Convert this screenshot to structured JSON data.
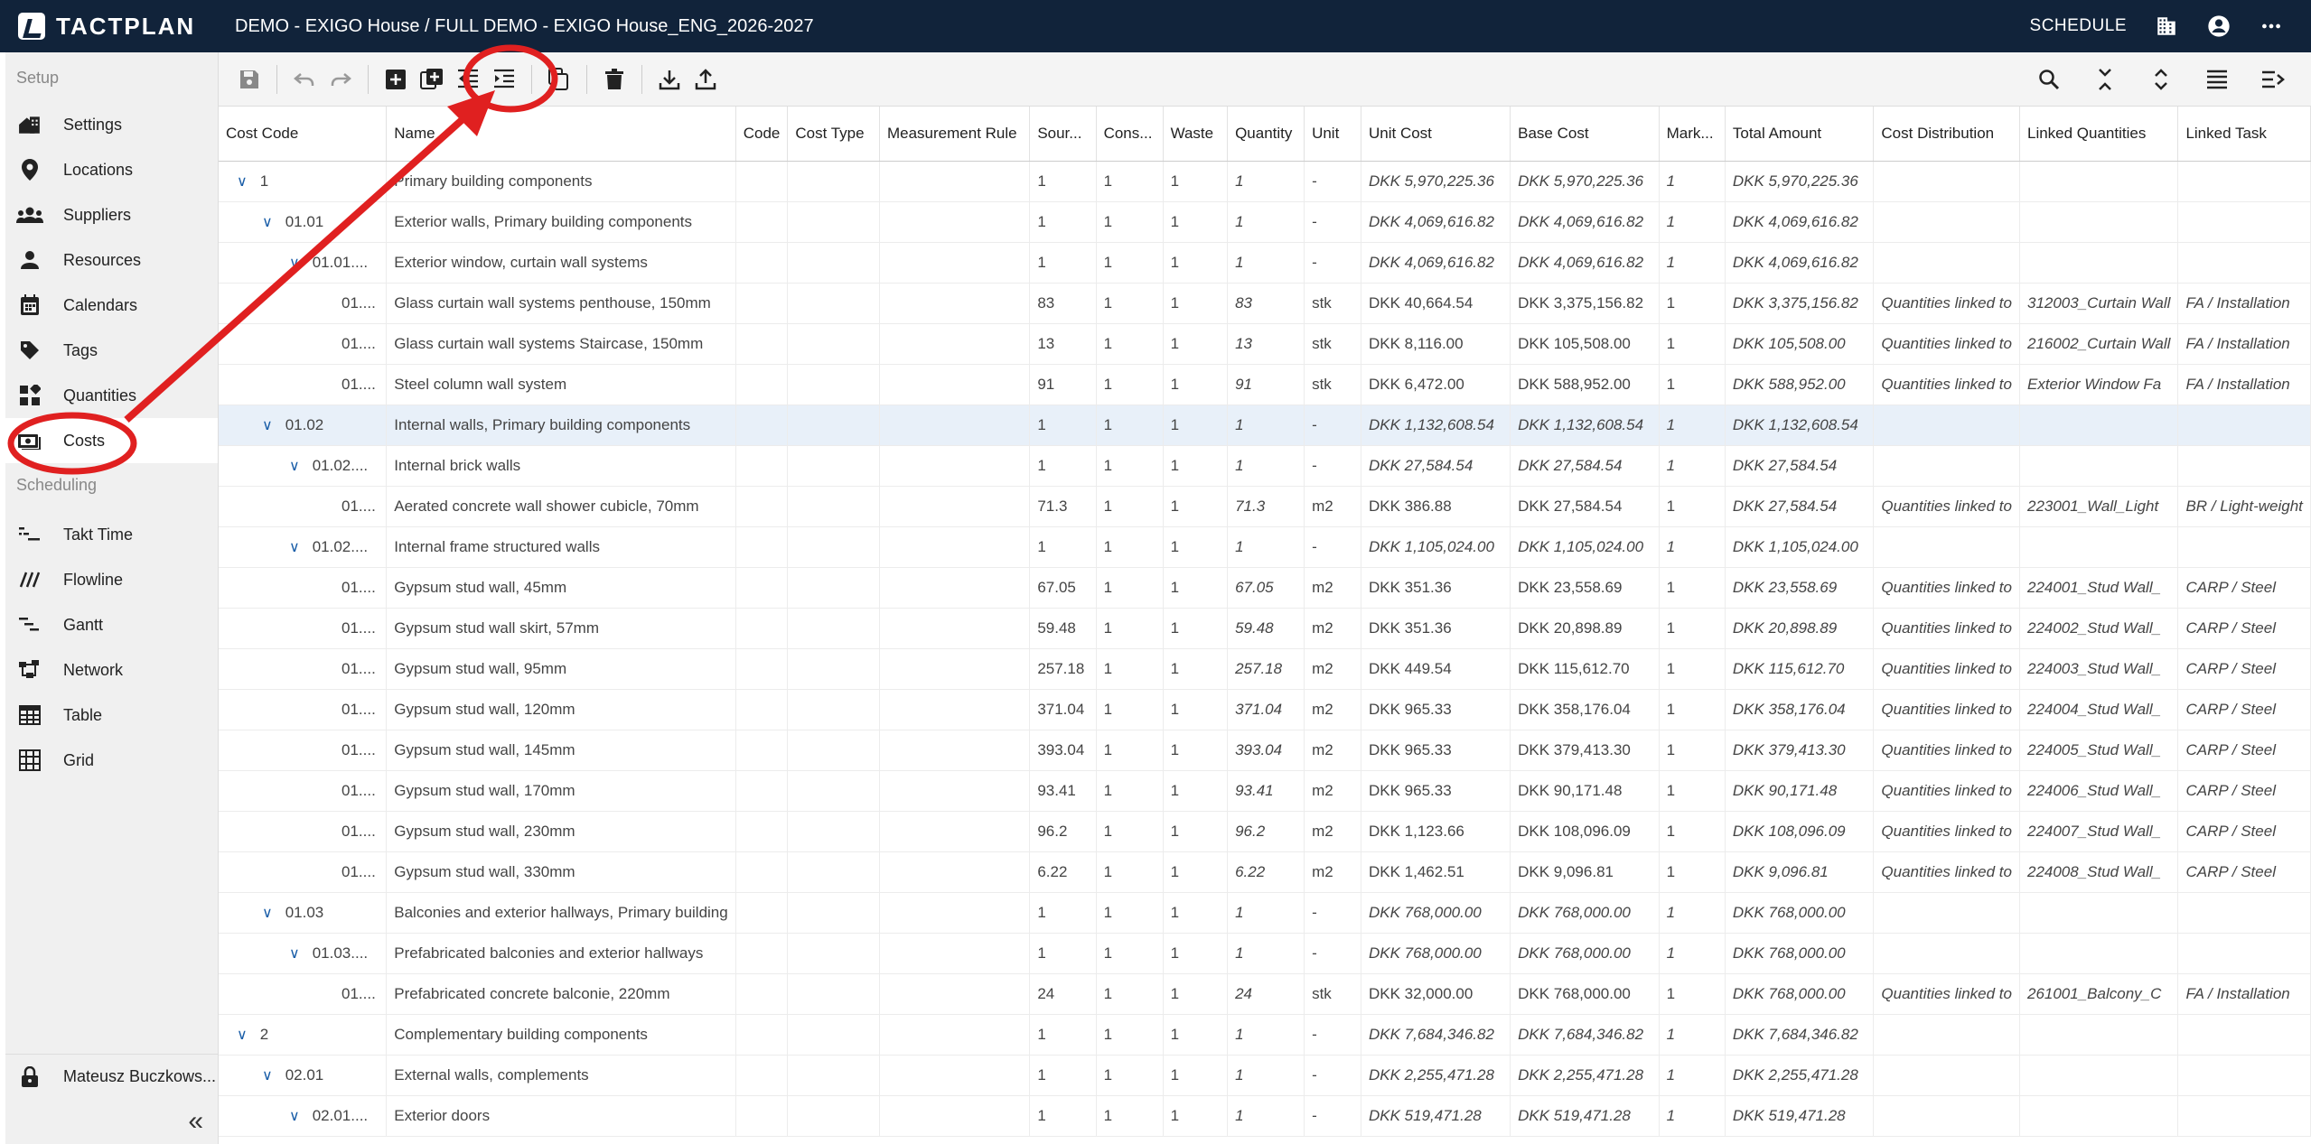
{
  "header": {
    "logo_text": "TACTPLAN",
    "title": "DEMO - EXIGO House / FULL DEMO - EXIGO House_ENG_2026-2027",
    "schedule_label": "SCHEDULE"
  },
  "sidebar": {
    "setup_label": "Setup",
    "scheduling_label": "Scheduling",
    "setup_items": [
      {
        "label": "Settings",
        "icon": "house-icon"
      },
      {
        "label": "Locations",
        "icon": "pin-icon"
      },
      {
        "label": "Suppliers",
        "icon": "group-icon"
      },
      {
        "label": "Resources",
        "icon": "person-icon"
      },
      {
        "label": "Calendars",
        "icon": "calendar-icon"
      },
      {
        "label": "Tags",
        "icon": "tag-icon"
      },
      {
        "label": "Quantities",
        "icon": "blocks-icon"
      },
      {
        "label": "Costs",
        "icon": "money-icon"
      }
    ],
    "scheduling_items": [
      {
        "label": "Takt Time",
        "icon": "takt-icon"
      },
      {
        "label": "Flowline",
        "icon": "flowline-icon"
      },
      {
        "label": "Gantt",
        "icon": "gantt-icon"
      },
      {
        "label": "Network",
        "icon": "network-icon"
      },
      {
        "label": "Table",
        "icon": "table-icon"
      },
      {
        "label": "Grid",
        "icon": "grid-icon"
      }
    ],
    "user_name": "Mateusz Buczkows...",
    "collapse_glyph": "«"
  },
  "table": {
    "columns": [
      "Cost Code",
      "Name",
      "Code",
      "Cost Type",
      "Measurement Rule",
      "Sour...",
      "Cons...",
      "Waste",
      "Quantity",
      "Unit",
      "Unit Cost",
      "Base Cost",
      "Mark...",
      "Total Amount",
      "Cost Distribution",
      "Linked Quantities",
      "Linked Task"
    ],
    "rows": [
      {
        "level": 0,
        "toggle": true,
        "code": "1",
        "name": "Primary building components",
        "source": "1",
        "cons": "1",
        "waste": "1",
        "quantity": "1",
        "unit": "-",
        "unit_cost": "DKK 5,970,225.36",
        "base_cost": "DKK 5,970,225.36",
        "markup": "1",
        "total": "DKK 5,970,225.36",
        "dist": "",
        "linked_q": "",
        "linked_t": "",
        "italic": true
      },
      {
        "level": 1,
        "toggle": true,
        "code": "01.01",
        "name": "Exterior walls, Primary building components",
        "source": "1",
        "cons": "1",
        "waste": "1",
        "quantity": "1",
        "unit": "-",
        "unit_cost": "DKK 4,069,616.82",
        "base_cost": "DKK 4,069,616.82",
        "markup": "1",
        "total": "DKK 4,069,616.82",
        "dist": "",
        "linked_q": "",
        "linked_t": "",
        "italic": true
      },
      {
        "level": 2,
        "toggle": true,
        "code": "01.01....",
        "name": "Exterior window, curtain wall systems",
        "source": "1",
        "cons": "1",
        "waste": "1",
        "quantity": "1",
        "unit": "-",
        "unit_cost": "DKK 4,069,616.82",
        "base_cost": "DKK 4,069,616.82",
        "markup": "1",
        "total": "DKK 4,069,616.82",
        "dist": "",
        "linked_q": "",
        "linked_t": "",
        "italic": true
      },
      {
        "level": 3,
        "toggle": false,
        "code": "01....",
        "name": "Glass curtain wall systems penthouse, 150mm",
        "source": "83",
        "cons": "1",
        "waste": "1",
        "quantity": "83",
        "unit": "stk",
        "unit_cost": "DKK 40,664.54",
        "base_cost": "DKK 3,375,156.82",
        "markup": "1",
        "total": "DKK 3,375,156.82",
        "dist": "Quantities linked to",
        "linked_q": "312003_Curtain Wall",
        "linked_t": "FA / Installation",
        "italic": false
      },
      {
        "level": 3,
        "toggle": false,
        "code": "01....",
        "name": "Glass curtain wall systems Staircase, 150mm",
        "source": "13",
        "cons": "1",
        "waste": "1",
        "quantity": "13",
        "unit": "stk",
        "unit_cost": "DKK 8,116.00",
        "base_cost": "DKK 105,508.00",
        "markup": "1",
        "total": "DKK 105,508.00",
        "dist": "Quantities linked to",
        "linked_q": "216002_Curtain Wall",
        "linked_t": "FA / Installation",
        "italic": false
      },
      {
        "level": 3,
        "toggle": false,
        "code": "01....",
        "name": "Steel column wall system",
        "source": "91",
        "cons": "1",
        "waste": "1",
        "quantity": "91",
        "unit": "stk",
        "unit_cost": "DKK 6,472.00",
        "base_cost": "DKK 588,952.00",
        "markup": "1",
        "total": "DKK 588,952.00",
        "dist": "Quantities linked to",
        "linked_q": "Exterior Window Fa",
        "linked_t": "FA / Installation",
        "italic": false
      },
      {
        "level": 1,
        "toggle": true,
        "code": "01.02",
        "name": "Internal walls, Primary building components",
        "source": "1",
        "cons": "1",
        "waste": "1",
        "quantity": "1",
        "unit": "-",
        "unit_cost": "DKK 1,132,608.54",
        "base_cost": "DKK 1,132,608.54",
        "markup": "1",
        "total": "DKK 1,132,608.54",
        "dist": "",
        "linked_q": "",
        "linked_t": "",
        "italic": true,
        "selected": true
      },
      {
        "level": 2,
        "toggle": true,
        "code": "01.02....",
        "name": "Internal brick walls",
        "source": "1",
        "cons": "1",
        "waste": "1",
        "quantity": "1",
        "unit": "-",
        "unit_cost": "DKK 27,584.54",
        "base_cost": "DKK 27,584.54",
        "markup": "1",
        "total": "DKK 27,584.54",
        "dist": "",
        "linked_q": "",
        "linked_t": "",
        "italic": true
      },
      {
        "level": 3,
        "toggle": false,
        "code": "01....",
        "name": "Aerated concrete wall shower cubicle, 70mm",
        "source": "71.3",
        "cons": "1",
        "waste": "1",
        "quantity": "71.3",
        "unit": "m2",
        "unit_cost": "DKK 386.88",
        "base_cost": "DKK 27,584.54",
        "markup": "1",
        "total": "DKK 27,584.54",
        "dist": "Quantities linked to",
        "linked_q": "223001_Wall_Light",
        "linked_t": "BR / Light-weight",
        "italic": false
      },
      {
        "level": 2,
        "toggle": true,
        "code": "01.02....",
        "name": "Internal frame structured walls",
        "source": "1",
        "cons": "1",
        "waste": "1",
        "quantity": "1",
        "unit": "-",
        "unit_cost": "DKK 1,105,024.00",
        "base_cost": "DKK 1,105,024.00",
        "markup": "1",
        "total": "DKK 1,105,024.00",
        "dist": "",
        "linked_q": "",
        "linked_t": "",
        "italic": true
      },
      {
        "level": 3,
        "toggle": false,
        "code": "01....",
        "name": "Gypsum stud wall, 45mm",
        "source": "67.05",
        "cons": "1",
        "waste": "1",
        "quantity": "67.05",
        "unit": "m2",
        "unit_cost": "DKK 351.36",
        "base_cost": "DKK 23,558.69",
        "markup": "1",
        "total": "DKK 23,558.69",
        "dist": "Quantities linked to",
        "linked_q": "224001_Stud Wall_",
        "linked_t": "CARP / Steel",
        "italic": false
      },
      {
        "level": 3,
        "toggle": false,
        "code": "01....",
        "name": "Gypsum stud wall skirt, 57mm",
        "source": "59.48",
        "cons": "1",
        "waste": "1",
        "quantity": "59.48",
        "unit": "m2",
        "unit_cost": "DKK 351.36",
        "base_cost": "DKK 20,898.89",
        "markup": "1",
        "total": "DKK 20,898.89",
        "dist": "Quantities linked to",
        "linked_q": "224002_Stud Wall_",
        "linked_t": "CARP / Steel",
        "italic": false
      },
      {
        "level": 3,
        "toggle": false,
        "code": "01....",
        "name": "Gypsum stud wall, 95mm",
        "source": "257.18",
        "cons": "1",
        "waste": "1",
        "quantity": "257.18",
        "unit": "m2",
        "unit_cost": "DKK 449.54",
        "base_cost": "DKK 115,612.70",
        "markup": "1",
        "total": "DKK 115,612.70",
        "dist": "Quantities linked to",
        "linked_q": "224003_Stud Wall_",
        "linked_t": "CARP / Steel",
        "italic": false
      },
      {
        "level": 3,
        "toggle": false,
        "code": "01....",
        "name": "Gypsum stud wall, 120mm",
        "source": "371.04",
        "cons": "1",
        "waste": "1",
        "quantity": "371.04",
        "unit": "m2",
        "unit_cost": "DKK 965.33",
        "base_cost": "DKK 358,176.04",
        "markup": "1",
        "total": "DKK 358,176.04",
        "dist": "Quantities linked to",
        "linked_q": "224004_Stud Wall_",
        "linked_t": "CARP / Steel",
        "italic": false
      },
      {
        "level": 3,
        "toggle": false,
        "code": "01....",
        "name": "Gypsum stud wall, 145mm",
        "source": "393.04",
        "cons": "1",
        "waste": "1",
        "quantity": "393.04",
        "unit": "m2",
        "unit_cost": "DKK 965.33",
        "base_cost": "DKK 379,413.30",
        "markup": "1",
        "total": "DKK 379,413.30",
        "dist": "Quantities linked to",
        "linked_q": "224005_Stud Wall_",
        "linked_t": "CARP / Steel",
        "italic": false
      },
      {
        "level": 3,
        "toggle": false,
        "code": "01....",
        "name": "Gypsum stud wall, 170mm",
        "source": "93.41",
        "cons": "1",
        "waste": "1",
        "quantity": "93.41",
        "unit": "m2",
        "unit_cost": "DKK 965.33",
        "base_cost": "DKK 90,171.48",
        "markup": "1",
        "total": "DKK 90,171.48",
        "dist": "Quantities linked to",
        "linked_q": "224006_Stud Wall_",
        "linked_t": "CARP / Steel",
        "italic": false
      },
      {
        "level": 3,
        "toggle": false,
        "code": "01....",
        "name": "Gypsum stud wall, 230mm",
        "source": "96.2",
        "cons": "1",
        "waste": "1",
        "quantity": "96.2",
        "unit": "m2",
        "unit_cost": "DKK 1,123.66",
        "base_cost": "DKK 108,096.09",
        "markup": "1",
        "total": "DKK 108,096.09",
        "dist": "Quantities linked to",
        "linked_q": "224007_Stud Wall_",
        "linked_t": "CARP / Steel",
        "italic": false
      },
      {
        "level": 3,
        "toggle": false,
        "code": "01....",
        "name": "Gypsum stud wall, 330mm",
        "source": "6.22",
        "cons": "1",
        "waste": "1",
        "quantity": "6.22",
        "unit": "m2",
        "unit_cost": "DKK 1,462.51",
        "base_cost": "DKK 9,096.81",
        "markup": "1",
        "total": "DKK 9,096.81",
        "dist": "Quantities linked to",
        "linked_q": "224008_Stud Wall_",
        "linked_t": "CARP / Steel",
        "italic": false
      },
      {
        "level": 1,
        "toggle": true,
        "code": "01.03",
        "name": "Balconies and exterior hallways, Primary building",
        "source": "1",
        "cons": "1",
        "waste": "1",
        "quantity": "1",
        "unit": "-",
        "unit_cost": "DKK 768,000.00",
        "base_cost": "DKK 768,000.00",
        "markup": "1",
        "total": "DKK 768,000.00",
        "dist": "",
        "linked_q": "",
        "linked_t": "",
        "italic": true
      },
      {
        "level": 2,
        "toggle": true,
        "code": "01.03....",
        "name": "Prefabricated balconies and exterior hallways",
        "source": "1",
        "cons": "1",
        "waste": "1",
        "quantity": "1",
        "unit": "-",
        "unit_cost": "DKK 768,000.00",
        "base_cost": "DKK 768,000.00",
        "markup": "1",
        "total": "DKK 768,000.00",
        "dist": "",
        "linked_q": "",
        "linked_t": "",
        "italic": true
      },
      {
        "level": 3,
        "toggle": false,
        "code": "01....",
        "name": "Prefabricated concrete balconie, 220mm",
        "source": "24",
        "cons": "1",
        "waste": "1",
        "quantity": "24",
        "unit": "stk",
        "unit_cost": "DKK 32,000.00",
        "base_cost": "DKK 768,000.00",
        "markup": "1",
        "total": "DKK 768,000.00",
        "dist": "Quantities linked to",
        "linked_q": "261001_Balcony_C",
        "linked_t": "FA / Installation",
        "italic": false
      },
      {
        "level": 0,
        "toggle": true,
        "code": "2",
        "name": "Complementary building components",
        "source": "1",
        "cons": "1",
        "waste": "1",
        "quantity": "1",
        "unit": "-",
        "unit_cost": "DKK 7,684,346.82",
        "base_cost": "DKK 7,684,346.82",
        "markup": "1",
        "total": "DKK 7,684,346.82",
        "dist": "",
        "linked_q": "",
        "linked_t": "",
        "italic": true
      },
      {
        "level": 1,
        "toggle": true,
        "code": "02.01",
        "name": "External walls, complements",
        "source": "1",
        "cons": "1",
        "waste": "1",
        "quantity": "1",
        "unit": "-",
        "unit_cost": "DKK 2,255,471.28",
        "base_cost": "DKK 2,255,471.28",
        "markup": "1",
        "total": "DKK 2,255,471.28",
        "dist": "",
        "linked_q": "",
        "linked_t": "",
        "italic": true
      },
      {
        "level": 2,
        "toggle": true,
        "code": "02.01....",
        "name": "Exterior doors",
        "source": "1",
        "cons": "1",
        "waste": "1",
        "quantity": "1",
        "unit": "-",
        "unit_cost": "DKK 519,471.28",
        "base_cost": "DKK 519,471.28",
        "markup": "1",
        "total": "DKK 519,471.28",
        "dist": "",
        "linked_q": "",
        "linked_t": "",
        "italic": true
      }
    ]
  },
  "colors": {
    "header_bg": "#11233a",
    "accent": "#1a5ea8",
    "annotation": "#e02020",
    "selected_row": "#e8f0f9"
  }
}
